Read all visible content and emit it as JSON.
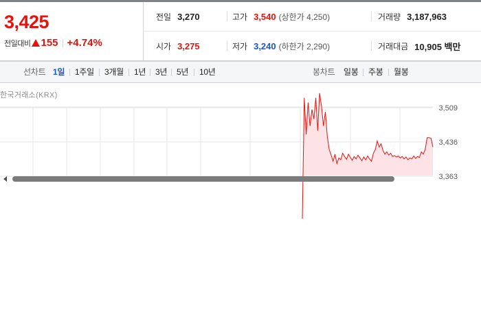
{
  "summary": {
    "current_price": "3,425",
    "change_label": "전일대비",
    "change_value": "155",
    "change_rate": "+4.74%",
    "direction_icon": "triangle-up-icon",
    "prev_close": {
      "label": "전일",
      "value": "3,270"
    },
    "high": {
      "label": "고가",
      "value": "3,540",
      "limit": "(상한가 4,250)"
    },
    "volume": {
      "label": "거래량",
      "value": "3,187,963"
    },
    "open": {
      "label": "시가",
      "value": "3,275"
    },
    "low": {
      "label": "저가",
      "value": "3,240",
      "limit": "(하한가 2,290)"
    },
    "trade_amount": {
      "label": "거래대금",
      "value": "10,905 백만"
    }
  },
  "period_bar": {
    "line_label": "선차트",
    "line_items": [
      "1일",
      "1주일",
      "3개월",
      "1년",
      "3년",
      "5년",
      "10년"
    ],
    "active_line_item": "1일",
    "candle_label": "봉차트",
    "candle_items": [
      "일봉",
      "주봉",
      "월봉"
    ]
  },
  "chart": {
    "source": "한국거래소(KRX)",
    "y_ticks": [
      "3,509",
      "3,436",
      "3,363"
    ]
  },
  "colors": {
    "up": "#e5120e",
    "down": "#1a57c8",
    "active": "#1a57c8",
    "fill": "#fde3e6"
  },
  "chart_data": {
    "type": "area",
    "title": "",
    "xlabel": "",
    "ylabel": "",
    "ylim": [
      3363,
      3582
    ],
    "y_ticks": [
      3509,
      3436,
      3363
    ],
    "start_fraction_of_session": 0.63,
    "values": [
      3272,
      3530,
      3452,
      3520,
      3470,
      3505,
      3485,
      3530,
      3460,
      3540,
      3512,
      3470,
      3500,
      3448,
      3420,
      3408,
      3395,
      3410,
      3390,
      3402,
      3398,
      3412,
      3405,
      3399,
      3410,
      3403,
      3397,
      3405,
      3400,
      3408,
      3402,
      3396,
      3404,
      3398,
      3406,
      3400,
      3395,
      3412,
      3420,
      3438,
      3425,
      3432,
      3418,
      3410,
      3415,
      3408,
      3412,
      3405,
      3407,
      3404,
      3406,
      3402,
      3405,
      3400,
      3404,
      3398,
      3402,
      3400,
      3406,
      3401,
      3405,
      3403,
      3415,
      3410,
      3420,
      3445,
      3445,
      3444,
      3425
    ]
  }
}
